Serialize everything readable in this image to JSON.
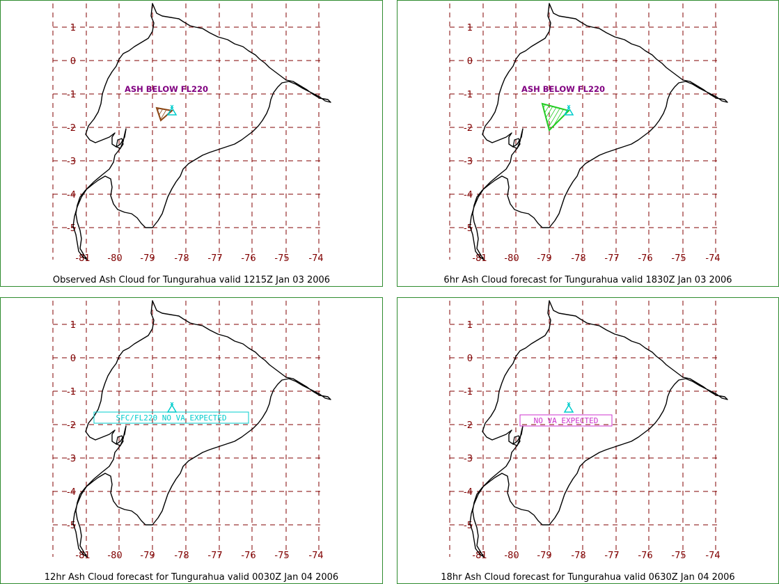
{
  "panels": [
    {
      "caption": "Observed Ash Cloud for Tungurahua valid 1215Z Jan 03 2006",
      "annotation": "ASH BELOW FL220",
      "annotation_style": "plain",
      "annotation_color": "#800080",
      "cloud_color": "#8b4513"
    },
    {
      "caption": "6hr Ash Cloud forecast for Tungurahua valid 1830Z Jan 03 2006",
      "annotation": "ASH BELOW FL220",
      "annotation_style": "plain",
      "annotation_color": "#800080",
      "cloud_color": "#22cc22"
    },
    {
      "caption": "12hr Ash Cloud forecast for Tungurahua valid 0030Z Jan 04 2006",
      "annotation": "SFC/FL220 NO VA EXPECTED",
      "annotation_style": "box",
      "annotation_color": "#00cccc",
      "cloud_color": ""
    },
    {
      "caption": "18hr Ash Cloud forecast for Tungurahua valid 0630Z Jan 04 2006",
      "annotation": "NO VA EXPECTED",
      "annotation_style": "box",
      "annotation_color": "#cc33cc",
      "cloud_color": ""
    }
  ],
  "lat_ticks": [
    "1",
    "0",
    "-1",
    "-2",
    "-3",
    "-4",
    "-5"
  ],
  "lon_ticks": [
    "-81",
    "-80",
    "-79",
    "-78",
    "-77",
    "-76",
    "-75",
    "-74"
  ],
  "colors": {
    "frame": "#2e8b2e",
    "grid": "#800000",
    "coast": "#000000",
    "volcano": "#00cccc"
  },
  "volcano_icon": "triangle-volcano-icon"
}
